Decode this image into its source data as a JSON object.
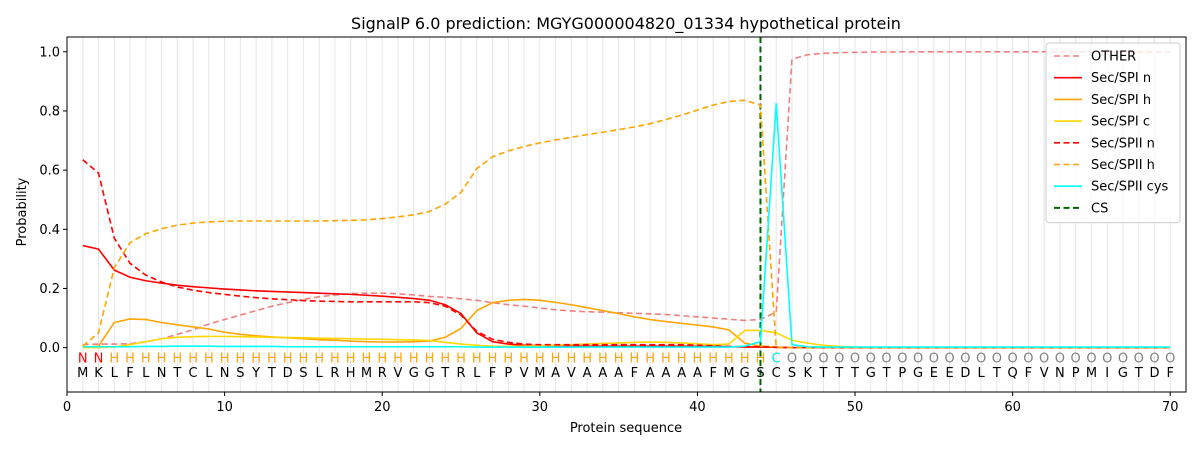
{
  "chart_data": {
    "type": "line",
    "title": "SignalP 6.0 prediction: MGYG000004820_01334 hypothetical protein",
    "xlabel": "Protein sequence",
    "ylabel": "Probability",
    "xlim": [
      0,
      71
    ],
    "ylim": [
      -0.15,
      1.05
    ],
    "x_ticks": [
      0,
      10,
      20,
      30,
      40,
      50,
      60,
      70
    ],
    "y_ticks": [
      0.0,
      0.2,
      0.4,
      0.6,
      0.8,
      1.0
    ],
    "y_tick_labels": [
      "0.0",
      "0.2",
      "0.4",
      "0.6",
      "0.8",
      "1.0"
    ],
    "grid": "vertical lines at each residue",
    "legend_position": "top-right",
    "sequence": [
      "M",
      "K",
      "L",
      "F",
      "L",
      "N",
      "T",
      "C",
      "L",
      "N",
      "S",
      "Y",
      "T",
      "D",
      "S",
      "L",
      "R",
      "H",
      "M",
      "R",
      "V",
      "G",
      "G",
      "T",
      "R",
      "L",
      "F",
      "P",
      "V",
      "M",
      "A",
      "V",
      "A",
      "A",
      "A",
      "F",
      "A",
      "A",
      "A",
      "A",
      "F",
      "M",
      "G",
      "S",
      "C",
      "S",
      "K",
      "T",
      "T",
      "T",
      "G",
      "T",
      "P",
      "G",
      "E",
      "E",
      "D",
      "L",
      "T",
      "Q",
      "F",
      "V",
      "N",
      "P",
      "M",
      "I",
      "G",
      "T",
      "D",
      "F"
    ],
    "labels": [
      "N",
      "N",
      "H",
      "H",
      "H",
      "H",
      "H",
      "H",
      "H",
      "H",
      "H",
      "H",
      "H",
      "H",
      "H",
      "H",
      "H",
      "H",
      "H",
      "H",
      "H",
      "H",
      "H",
      "H",
      "H",
      "H",
      "H",
      "H",
      "H",
      "H",
      "H",
      "H",
      "H",
      "H",
      "H",
      "H",
      "H",
      "H",
      "H",
      "H",
      "H",
      "H",
      "H",
      "H",
      "C",
      "O",
      "O",
      "O",
      "O",
      "O",
      "O",
      "O",
      "O",
      "O",
      "O",
      "O",
      "O",
      "O",
      "O",
      "O",
      "O",
      "O",
      "O",
      "O",
      "O",
      "O",
      "O",
      "O",
      "O",
      "O"
    ],
    "label_colors": {
      "N": "#ff0000",
      "H": "#ffa500",
      "C": "#00e5e5",
      "O": "#808080"
    },
    "cs_position": 44,
    "x": [
      1,
      2,
      3,
      4,
      5,
      6,
      7,
      8,
      9,
      10,
      11,
      12,
      13,
      14,
      15,
      16,
      17,
      18,
      19,
      20,
      21,
      22,
      23,
      24,
      25,
      26,
      27,
      28,
      29,
      30,
      31,
      32,
      33,
      34,
      35,
      36,
      37,
      38,
      39,
      40,
      41,
      42,
      43,
      44,
      45,
      46,
      47,
      48,
      49,
      50,
      51,
      52,
      53,
      54,
      55,
      56,
      57,
      58,
      59,
      60,
      61,
      62,
      63,
      64,
      65,
      66,
      67,
      68,
      69,
      70
    ],
    "series": [
      {
        "name": "OTHER",
        "color": "#f08080",
        "dash": "dashed",
        "values": [
          0.01,
          0.012,
          0.012,
          0.013,
          0.02,
          0.03,
          0.045,
          0.06,
          0.08,
          0.095,
          0.11,
          0.125,
          0.14,
          0.152,
          0.163,
          0.172,
          0.178,
          0.182,
          0.184,
          0.184,
          0.182,
          0.178,
          0.173,
          0.17,
          0.165,
          0.16,
          0.152,
          0.145,
          0.14,
          0.134,
          0.128,
          0.124,
          0.121,
          0.12,
          0.118,
          0.116,
          0.114,
          0.112,
          0.108,
          0.104,
          0.1,
          0.096,
          0.092,
          0.095,
          0.12,
          0.975,
          0.99,
          0.995,
          0.997,
          0.998,
          0.999,
          0.999,
          1.0,
          1.0,
          1.0,
          1.0,
          1.0,
          1.0,
          1.0,
          1.0,
          1.0,
          1.0,
          1.0,
          1.0,
          1.0,
          1.0,
          1.0,
          1.0,
          1.0,
          1.0
        ]
      },
      {
        "name": "Sec/SPI n",
        "color": "#ff0000",
        "dash": "solid",
        "values": [
          0.345,
          0.333,
          0.262,
          0.238,
          0.226,
          0.218,
          0.211,
          0.206,
          0.202,
          0.198,
          0.195,
          0.192,
          0.19,
          0.188,
          0.186,
          0.184,
          0.182,
          0.18,
          0.177,
          0.174,
          0.17,
          0.166,
          0.16,
          0.145,
          0.115,
          0.05,
          0.02,
          0.012,
          0.008,
          0.006,
          0.005,
          0.005,
          0.005,
          0.005,
          0.005,
          0.005,
          0.005,
          0.005,
          0.005,
          0.004,
          0.004,
          0.003,
          0.002,
          0.002,
          0.001,
          0.0,
          0.0,
          0.0,
          0.0,
          0.0,
          0.0,
          0.0,
          0.0,
          0.0,
          0.0,
          0.0,
          0.0,
          0.0,
          0.0,
          0.0,
          0.0,
          0.0,
          0.0,
          0.0,
          0.0,
          0.0,
          0.0,
          0.0,
          0.0,
          0.0
        ]
      },
      {
        "name": "Sec/SPI h",
        "color": "#ffa500",
        "dash": "solid",
        "values": [
          0.0,
          0.005,
          0.085,
          0.097,
          0.095,
          0.085,
          0.077,
          0.07,
          0.063,
          0.052,
          0.045,
          0.04,
          0.036,
          0.033,
          0.03,
          0.027,
          0.025,
          0.022,
          0.02,
          0.019,
          0.019,
          0.02,
          0.022,
          0.035,
          0.065,
          0.125,
          0.152,
          0.16,
          0.163,
          0.16,
          0.153,
          0.145,
          0.135,
          0.125,
          0.115,
          0.104,
          0.095,
          0.088,
          0.082,
          0.076,
          0.07,
          0.06,
          0.015,
          0.005,
          0.002,
          0.0,
          0.0,
          0.0,
          0.0,
          0.0,
          0.0,
          0.0,
          0.0,
          0.0,
          0.0,
          0.0,
          0.0,
          0.0,
          0.0,
          0.0,
          0.0,
          0.0,
          0.0,
          0.0,
          0.0,
          0.0,
          0.0,
          0.0,
          0.0,
          0.0
        ]
      },
      {
        "name": "Sec/SPI c",
        "color": "#ffd700",
        "dash": "solid",
        "values": [
          0.0,
          0.0,
          0.002,
          0.01,
          0.02,
          0.03,
          0.035,
          0.037,
          0.038,
          0.038,
          0.037,
          0.036,
          0.035,
          0.034,
          0.033,
          0.032,
          0.031,
          0.03,
          0.029,
          0.028,
          0.027,
          0.026,
          0.024,
          0.018,
          0.012,
          0.008,
          0.005,
          0.004,
          0.005,
          0.006,
          0.008,
          0.01,
          0.012,
          0.014,
          0.016,
          0.018,
          0.019,
          0.018,
          0.016,
          0.013,
          0.01,
          0.012,
          0.058,
          0.058,
          0.05,
          0.025,
          0.015,
          0.008,
          0.004,
          0.002,
          0.001,
          0.0,
          0.0,
          0.0,
          0.0,
          0.0,
          0.0,
          0.0,
          0.0,
          0.0,
          0.0,
          0.0,
          0.0,
          0.0,
          0.0,
          0.0,
          0.0,
          0.0,
          0.0,
          0.0
        ]
      },
      {
        "name": "Sec/SPII n",
        "color": "#ff0000",
        "dash": "dashed",
        "values": [
          0.635,
          0.59,
          0.37,
          0.285,
          0.245,
          0.222,
          0.205,
          0.194,
          0.186,
          0.18,
          0.174,
          0.169,
          0.165,
          0.162,
          0.159,
          0.157,
          0.156,
          0.155,
          0.155,
          0.155,
          0.155,
          0.155,
          0.152,
          0.14,
          0.11,
          0.055,
          0.028,
          0.018,
          0.012,
          0.01,
          0.01,
          0.01,
          0.01,
          0.01,
          0.01,
          0.01,
          0.01,
          0.01,
          0.01,
          0.008,
          0.006,
          0.004,
          0.003,
          0.003,
          0.001,
          0.0,
          0.0,
          0.0,
          0.0,
          0.0,
          0.0,
          0.0,
          0.0,
          0.0,
          0.0,
          0.0,
          0.0,
          0.0,
          0.0,
          0.0,
          0.0,
          0.0,
          0.0,
          0.0,
          0.0,
          0.0,
          0.0,
          0.0,
          0.0,
          0.0
        ]
      },
      {
        "name": "Sec/SPII h",
        "color": "#ffa500",
        "dash": "dashed",
        "values": [
          0.005,
          0.05,
          0.27,
          0.355,
          0.385,
          0.402,
          0.414,
          0.421,
          0.425,
          0.427,
          0.428,
          0.428,
          0.428,
          0.428,
          0.428,
          0.428,
          0.429,
          0.43,
          0.432,
          0.436,
          0.442,
          0.449,
          0.46,
          0.485,
          0.525,
          0.605,
          0.645,
          0.665,
          0.68,
          0.692,
          0.702,
          0.711,
          0.72,
          0.728,
          0.737,
          0.746,
          0.757,
          0.771,
          0.786,
          0.803,
          0.82,
          0.832,
          0.836,
          0.82,
          0.0,
          0.0,
          0.0,
          0.0,
          0.0,
          0.0,
          0.0,
          0.0,
          0.0,
          0.0,
          0.0,
          0.0,
          0.0,
          0.0,
          0.0,
          0.0,
          0.0,
          0.0,
          0.0,
          0.0,
          0.0,
          0.0,
          0.0,
          0.0,
          0.0,
          0.0
        ]
      },
      {
        "name": "Sec/SPII cys",
        "color": "#00ffff",
        "dash": "solid",
        "values": [
          0.003,
          0.003,
          0.003,
          0.003,
          0.004,
          0.004,
          0.005,
          0.005,
          0.005,
          0.004,
          0.004,
          0.004,
          0.004,
          0.003,
          0.003,
          0.003,
          0.003,
          0.003,
          0.003,
          0.003,
          0.003,
          0.003,
          0.003,
          0.003,
          0.003,
          0.002,
          0.002,
          0.002,
          0.002,
          0.002,
          0.002,
          0.002,
          0.002,
          0.002,
          0.002,
          0.002,
          0.002,
          0.002,
          0.002,
          0.002,
          0.002,
          0.002,
          0.005,
          0.02,
          0.825,
          0.01,
          0.003,
          0.002,
          0.002,
          0.002,
          0.002,
          0.002,
          0.002,
          0.002,
          0.002,
          0.002,
          0.002,
          0.002,
          0.002,
          0.002,
          0.002,
          0.002,
          0.002,
          0.002,
          0.002,
          0.002,
          0.002,
          0.002,
          0.002,
          0.002
        ]
      }
    ],
    "cs_legend": {
      "name": "CS",
      "color": "#006400",
      "dash": "dashed"
    }
  }
}
